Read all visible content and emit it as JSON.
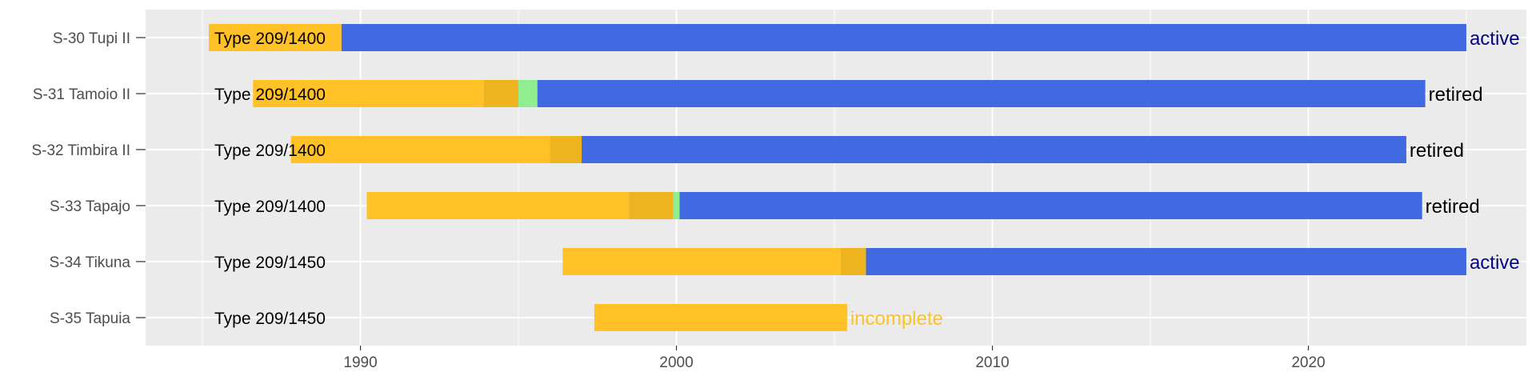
{
  "chart_data": {
    "type": "bar",
    "orientation": "horizontal",
    "title": "",
    "xlabel": "",
    "ylabel": "",
    "xlim": [
      1983.2,
      1986.5
    ],
    "xlim_note": "",
    "x_range": [
      1983.2,
      2026.9
    ],
    "x_ticks": [
      1990,
      2000,
      2010,
      2020
    ],
    "x_tick_labels": [
      "1990",
      "2000",
      "2010",
      "2020"
    ],
    "grid": true,
    "legend": "none",
    "colors": {
      "construction": "#FFC125",
      "fitting_out": "#EDB420",
      "trials": "#90EE90",
      "service": "#4169E1",
      "status_active": "#00008B",
      "status_retired": "#000000",
      "status_incomplete": "#FFC125",
      "panel_bg": "#EBEBEB",
      "grid": "#FFFFFF"
    },
    "rows": [
      {
        "name": "S-30 Tupi II",
        "type_label": "Type 209/1400",
        "segments": [
          {
            "phase": "construction",
            "start": 1985.2,
            "end": 1989.4
          },
          {
            "phase": "service",
            "start": 1989.4,
            "end": 2025.0
          }
        ],
        "status": "active",
        "status_kind": "active"
      },
      {
        "name": "S-31 Tamoio II",
        "type_label": "Type 209/1400",
        "segments": [
          {
            "phase": "construction",
            "start": 1986.6,
            "end": 1993.9
          },
          {
            "phase": "fitting_out",
            "start": 1993.9,
            "end": 1995.0
          },
          {
            "phase": "trials",
            "start": 1995.0,
            "end": 1995.6
          },
          {
            "phase": "service",
            "start": 1995.6,
            "end": 2023.7
          }
        ],
        "status": "retired",
        "status_kind": "retired"
      },
      {
        "name": "S-32 Timbira II",
        "type_label": "Type 209/1400",
        "segments": [
          {
            "phase": "construction",
            "start": 1987.8,
            "end": 1996.0
          },
          {
            "phase": "fitting_out",
            "start": 1996.0,
            "end": 1997.0
          },
          {
            "phase": "service",
            "start": 1997.0,
            "end": 2023.1
          }
        ],
        "status": "retired",
        "status_kind": "retired"
      },
      {
        "name": "S-33 Tapajo",
        "type_label": "Type 209/1400",
        "segments": [
          {
            "phase": "construction",
            "start": 1990.2,
            "end": 1998.5
          },
          {
            "phase": "fitting_out",
            "start": 1998.5,
            "end": 1999.9
          },
          {
            "phase": "trials",
            "start": 1999.9,
            "end": 2000.1
          },
          {
            "phase": "service",
            "start": 2000.1,
            "end": 2023.6
          }
        ],
        "status": "retired",
        "status_kind": "retired"
      },
      {
        "name": "S-34 Tikuna",
        "type_label": "Type 209/1450",
        "segments": [
          {
            "phase": "construction",
            "start": 1996.4,
            "end": 2005.2
          },
          {
            "phase": "fitting_out",
            "start": 2005.2,
            "end": 2006.0
          },
          {
            "phase": "service",
            "start": 2006.0,
            "end": 2025.0
          }
        ],
        "status": "active",
        "status_kind": "active"
      },
      {
        "name": "S-35 Tapuia",
        "type_label": "Type 209/1450",
        "segments": [
          {
            "phase": "construction",
            "start": 1997.4,
            "end": 2005.4
          }
        ],
        "status": "incomplete",
        "status_kind": "incomplete"
      }
    ]
  }
}
